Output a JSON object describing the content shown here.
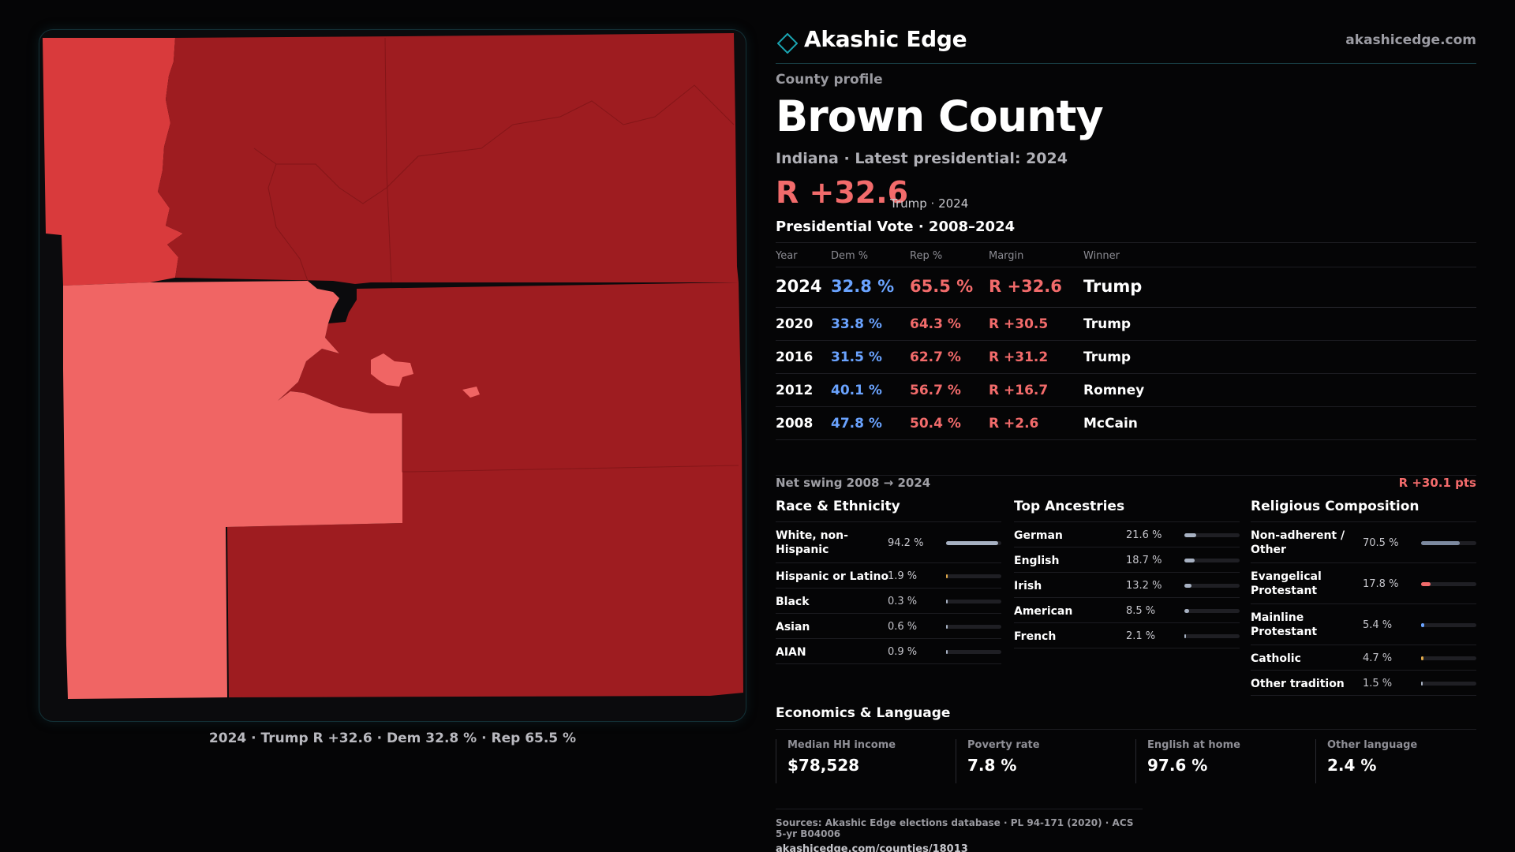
{
  "brand": {
    "name": "Akashic Edge",
    "url": "akashicedge.com",
    "icon": "diamond-outline-icon",
    "accent": "#1aa3b0"
  },
  "profile_label": "County profile",
  "county": {
    "name": "Brown County",
    "subtitle": "Indiana · Latest presidential: 2024"
  },
  "headline": {
    "margin": "R +32.6",
    "detail": "Trump · 2024"
  },
  "presidential": {
    "heading": "Presidential Vote · 2008–2024",
    "columns": [
      "Year",
      "Dem %",
      "Rep %",
      "Margin",
      "Winner"
    ],
    "rows": [
      {
        "year": "2024",
        "dem": "32.8 %",
        "rep": "65.5 %",
        "margin": "R +32.6",
        "winner": "Trump"
      },
      {
        "year": "2020",
        "dem": "33.8 %",
        "rep": "64.3 %",
        "margin": "R +30.5",
        "winner": "Trump"
      },
      {
        "year": "2016",
        "dem": "31.5 %",
        "rep": "62.7 %",
        "margin": "R +31.2",
        "winner": "Trump"
      },
      {
        "year": "2012",
        "dem": "40.1 %",
        "rep": "56.7 %",
        "margin": "R +16.7",
        "winner": "Romney"
      },
      {
        "year": "2008",
        "dem": "47.8 %",
        "rep": "50.4 %",
        "margin": "R +2.6",
        "winner": "McCain"
      }
    ]
  },
  "swing": {
    "label": "Net swing 2008 → 2024",
    "value": "R +30.1 pts"
  },
  "race": {
    "title": "Race & Ethnicity",
    "items": [
      {
        "label": "White, non-Hispanic",
        "value": "94.2 %",
        "share": 0.942,
        "color": "#a7b1c2"
      },
      {
        "label": "Hispanic or Latino",
        "value": "1.9 %",
        "share": 0.019,
        "color": "#e0a94a"
      },
      {
        "label": "Black",
        "value": "0.3 %",
        "share": 0.003,
        "color": "#a7b1c2"
      },
      {
        "label": "Asian",
        "value": "0.6 %",
        "share": 0.006,
        "color": "#a7b1c2"
      },
      {
        "label": "AIAN",
        "value": "0.9 %",
        "share": 0.009,
        "color": "#a7b1c2"
      }
    ]
  },
  "ancestries": {
    "title": "Top Ancestries",
    "items": [
      {
        "label": "German",
        "value": "21.6 %",
        "share": 0.216,
        "color": "#a7b1c2"
      },
      {
        "label": "English",
        "value": "18.7 %",
        "share": 0.187,
        "color": "#a7b1c2"
      },
      {
        "label": "Irish",
        "value": "13.2 %",
        "share": 0.132,
        "color": "#a7b1c2"
      },
      {
        "label": "American",
        "value": "8.5 %",
        "share": 0.085,
        "color": "#a7b1c2"
      },
      {
        "label": "French",
        "value": "2.1 %",
        "share": 0.021,
        "color": "#a7b1c2"
      }
    ]
  },
  "religion": {
    "title": "Religious Composition",
    "items": [
      {
        "label": "Non-adherent / Other",
        "value": "70.5 %",
        "share": 0.705,
        "color": "#7d8aa0"
      },
      {
        "label": "Evangelical Protestant",
        "value": "17.8 %",
        "share": 0.178,
        "color": "#f26b6b"
      },
      {
        "label": "Mainline Protestant",
        "value": "5.4 %",
        "share": 0.054,
        "color": "#6aa3ff"
      },
      {
        "label": "Catholic",
        "value": "4.7 %",
        "share": 0.047,
        "color": "#e0a94a"
      },
      {
        "label": "Other tradition",
        "value": "1.5 %",
        "share": 0.015,
        "color": "#a7b1c2"
      }
    ]
  },
  "economics": {
    "title": "Economics & Language",
    "cells": [
      {
        "label": "Median HH income",
        "value": "$78,528"
      },
      {
        "label": "Poverty rate",
        "value": "7.8 %"
      },
      {
        "label": "English at home",
        "value": "97.6 %"
      },
      {
        "label": "Other language",
        "value": "2.4 %"
      }
    ]
  },
  "sources": {
    "line": "Sources: Akashic Edge elections database · PL 94-171 (2020) · ACS 5-yr B04006",
    "url": "akashicedge.com/counties/18013"
  },
  "map": {
    "caption": "2024 · Trump R +32.6 · Dem 32.8 % · Rep 65.5 %",
    "colors": {
      "strong_r": "#9e1c20",
      "medium_r": "#d93a3c",
      "light_r": "#f06564"
    }
  }
}
